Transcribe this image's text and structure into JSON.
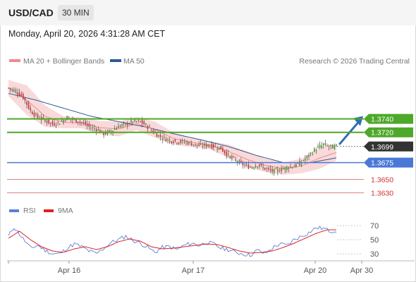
{
  "header": {
    "symbol": "USD/CAD",
    "timeframe": "30 MIN",
    "timestamp": "Monday, April 20, 2026 4:31:28 AM CET"
  },
  "main_panel": {
    "legend": [
      {
        "label": "MA 20 + Bollinger Bands",
        "color": "#f08a8a"
      },
      {
        "label": "MA 50",
        "color": "#2e5a94"
      }
    ],
    "copyright": "Research © 2026 Trading Central"
  },
  "rsi_panel": {
    "legend": [
      {
        "label": "RSI",
        "color": "#5b7fd6"
      },
      {
        "label": "9MA",
        "color": "#e02020"
      }
    ]
  },
  "colors": {
    "green_level": "#4ea82a",
    "blue_level": "#4a78d6",
    "red_level": "#e08080",
    "current": "#333333",
    "arrow": "#2f6db5",
    "candle_up": "#3a9a2a",
    "candle_down": "#cc3333",
    "band_fill": "#f7d3d3"
  },
  "chart_data": [
    {
      "type": "candlestick",
      "title": "USD/CAD 30 MIN",
      "x_ticks": [
        "Apr 16",
        "Apr 17",
        "Apr 20",
        "Apr 30"
      ],
      "ylim": [
        1.3618,
        1.3812
      ],
      "levels": [
        {
          "value": 1.374,
          "label": "1.3740",
          "kind": "resistance"
        },
        {
          "value": 1.372,
          "label": "1.3720",
          "kind": "resistance"
        },
        {
          "value": 1.3699,
          "label": "1.3699",
          "kind": "current"
        },
        {
          "value": 1.3675,
          "label": "1.3675",
          "kind": "pivot"
        },
        {
          "value": 1.365,
          "label": "1.3650",
          "kind": "support"
        },
        {
          "value": 1.363,
          "label": "1.3630",
          "kind": "support"
        }
      ],
      "close_anchors": [
        [
          0,
          1.3786
        ],
        [
          4,
          1.3782
        ],
        [
          8,
          1.3772
        ],
        [
          12,
          1.3752
        ],
        [
          16,
          1.3742
        ],
        [
          20,
          1.3738
        ],
        [
          24,
          1.3732
        ],
        [
          28,
          1.3735
        ],
        [
          32,
          1.3742
        ],
        [
          36,
          1.3738
        ],
        [
          40,
          1.3735
        ],
        [
          44,
          1.3728
        ],
        [
          48,
          1.3725
        ],
        [
          52,
          1.3718
        ],
        [
          56,
          1.3722
        ],
        [
          60,
          1.3729
        ],
        [
          64,
          1.3732
        ],
        [
          68,
          1.3736
        ],
        [
          72,
          1.3736
        ],
        [
          76,
          1.3728
        ],
        [
          80,
          1.3718
        ],
        [
          84,
          1.3712
        ],
        [
          88,
          1.3708
        ],
        [
          92,
          1.3706
        ],
        [
          96,
          1.3706
        ],
        [
          100,
          1.3703
        ],
        [
          104,
          1.37
        ],
        [
          108,
          1.3701
        ],
        [
          112,
          1.3699
        ],
        [
          116,
          1.3696
        ],
        [
          120,
          1.3685
        ],
        [
          124,
          1.3678
        ],
        [
          128,
          1.3672
        ],
        [
          132,
          1.3668
        ],
        [
          136,
          1.3672
        ],
        [
          140,
          1.3666
        ],
        [
          144,
          1.3662
        ],
        [
          148,
          1.3664
        ],
        [
          152,
          1.3668
        ],
        [
          156,
          1.367
        ],
        [
          160,
          1.3676
        ],
        [
          164,
          1.3686
        ],
        [
          168,
          1.3696
        ],
        [
          172,
          1.3702
        ],
        [
          176,
          1.3698
        ],
        [
          179,
          1.3699
        ]
      ],
      "ma20_anchors": [
        [
          0,
          1.3786
        ],
        [
          10,
          1.3768
        ],
        [
          20,
          1.3744
        ],
        [
          30,
          1.3735
        ],
        [
          40,
          1.3734
        ],
        [
          50,
          1.3727
        ],
        [
          60,
          1.3725
        ],
        [
          70,
          1.3733
        ],
        [
          80,
          1.3724
        ],
        [
          90,
          1.3711
        ],
        [
          100,
          1.3705
        ],
        [
          110,
          1.3701
        ],
        [
          120,
          1.3692
        ],
        [
          130,
          1.368
        ],
        [
          140,
          1.3671
        ],
        [
          150,
          1.3666
        ],
        [
          160,
          1.367
        ],
        [
          170,
          1.3682
        ],
        [
          179,
          1.369
        ]
      ],
      "ma50_anchors": [
        [
          0,
          1.3778
        ],
        [
          15,
          1.3768
        ],
        [
          30,
          1.3756
        ],
        [
          45,
          1.3744
        ],
        [
          60,
          1.3736
        ],
        [
          75,
          1.3728
        ],
        [
          90,
          1.3718
        ],
        [
          105,
          1.3709
        ],
        [
          120,
          1.3699
        ],
        [
          135,
          1.3686
        ],
        [
          150,
          1.3675
        ],
        [
          165,
          1.3675
        ],
        [
          179,
          1.3682
        ]
      ],
      "band_width_anchors": [
        [
          0,
          0.0012
        ],
        [
          10,
          0.0022
        ],
        [
          20,
          0.0016
        ],
        [
          30,
          0.0009
        ],
        [
          40,
          0.0008
        ],
        [
          50,
          0.001
        ],
        [
          60,
          0.0011
        ],
        [
          70,
          0.001
        ],
        [
          80,
          0.0012
        ],
        [
          90,
          0.0009
        ],
        [
          100,
          0.0007
        ],
        [
          110,
          0.0006
        ],
        [
          120,
          0.001
        ],
        [
          130,
          0.0012
        ],
        [
          140,
          0.001
        ],
        [
          150,
          0.0009
        ],
        [
          160,
          0.0011
        ],
        [
          170,
          0.0016
        ],
        [
          179,
          0.0012
        ]
      ],
      "projection": {
        "from": 1.3703,
        "to": 1.374
      }
    },
    {
      "type": "line",
      "title": "RSI",
      "y_ticks": [
        70,
        50,
        30
      ],
      "ylim": [
        20,
        80
      ],
      "series": [
        {
          "name": "RSI",
          "anchors": [
            [
              0,
              55
            ],
            [
              3,
              68
            ],
            [
              6,
              58
            ],
            [
              9,
              48
            ],
            [
              12,
              38
            ],
            [
              16,
              42
            ],
            [
              20,
              35
            ],
            [
              24,
              30
            ],
            [
              28,
              30
            ],
            [
              32,
              38
            ],
            [
              36,
              44
            ],
            [
              40,
              40
            ],
            [
              44,
              34
            ],
            [
              48,
              30
            ],
            [
              52,
              38
            ],
            [
              56,
              46
            ],
            [
              60,
              50
            ],
            [
              64,
              55
            ],
            [
              68,
              49
            ],
            [
              72,
              45
            ],
            [
              76,
              39
            ],
            [
              80,
              32
            ],
            [
              84,
              39
            ],
            [
              88,
              40
            ],
            [
              92,
              36
            ],
            [
              96,
              42
            ],
            [
              100,
              45
            ],
            [
              104,
              42
            ],
            [
              108,
              46
            ],
            [
              112,
              44
            ],
            [
              116,
              38
            ],
            [
              120,
              36
            ],
            [
              124,
              32
            ],
            [
              128,
              30
            ],
            [
              132,
              28
            ],
            [
              136,
              35
            ],
            [
              140,
              30
            ],
            [
              144,
              38
            ],
            [
              148,
              44
            ],
            [
              152,
              42
            ],
            [
              156,
              50
            ],
            [
              160,
              55
            ],
            [
              164,
              60
            ],
            [
              168,
              67
            ],
            [
              172,
              66
            ],
            [
              176,
              62
            ],
            [
              179,
              63
            ]
          ]
        },
        {
          "name": "9MA",
          "anchors": [
            [
              0,
              52
            ],
            [
              6,
              62
            ],
            [
              12,
              50
            ],
            [
              18,
              40
            ],
            [
              24,
              34
            ],
            [
              30,
              32
            ],
            [
              36,
              37
            ],
            [
              42,
              40
            ],
            [
              48,
              36
            ],
            [
              54,
              40
            ],
            [
              60,
              47
            ],
            [
              66,
              51
            ],
            [
              72,
              48
            ],
            [
              78,
              40
            ],
            [
              84,
              37
            ],
            [
              90,
              38
            ],
            [
              96,
              40
            ],
            [
              102,
              42
            ],
            [
              108,
              44
            ],
            [
              114,
              43
            ],
            [
              120,
              39
            ],
            [
              126,
              34
            ],
            [
              132,
              31
            ],
            [
              138,
              32
            ],
            [
              144,
              34
            ],
            [
              150,
              39
            ],
            [
              156,
              45
            ],
            [
              162,
              52
            ],
            [
              168,
              59
            ],
            [
              174,
              64
            ],
            [
              179,
              64
            ]
          ]
        }
      ]
    }
  ]
}
